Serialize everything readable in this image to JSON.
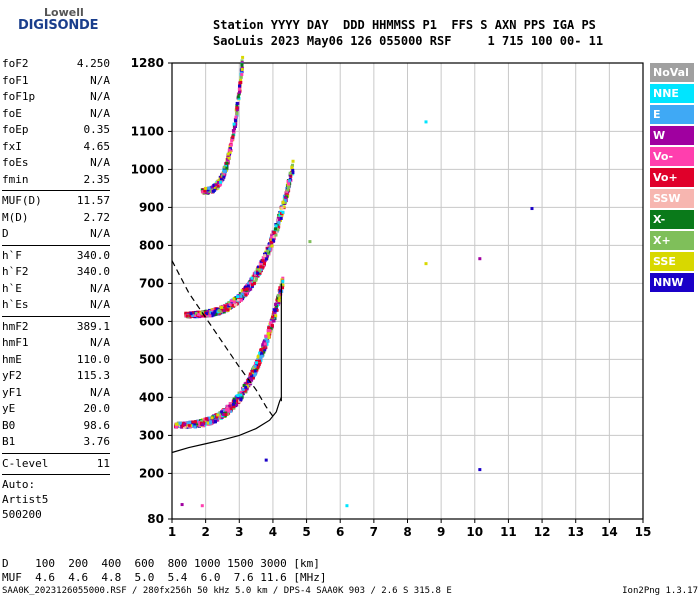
{
  "logo": {
    "top": "Lowell",
    "bottom": "DIGISONDE"
  },
  "header": {
    "line1": "Station YYYY DAY  DDD HHMMSS P1  FFS S AXN PPS IGA PS",
    "line2": "SaoLuis 2023 May06 126 055000 RSF     1 715 100 00- 11"
  },
  "params_groups": [
    [
      [
        "foF2",
        "4.250"
      ],
      [
        "foF1",
        "N/A"
      ],
      [
        "foF1p",
        "N/A"
      ],
      [
        "foE",
        "N/A"
      ],
      [
        "foEp",
        "0.35"
      ],
      [
        "fxI",
        "4.65"
      ],
      [
        "foEs",
        "N/A"
      ],
      [
        "fmin",
        "2.35"
      ]
    ],
    [
      [
        "MUF(D)",
        "11.57"
      ],
      [
        "M(D)",
        "2.72"
      ],
      [
        "D",
        "N/A"
      ]
    ],
    [
      [
        "h`F",
        "340.0"
      ],
      [
        "h`F2",
        "340.0"
      ],
      [
        "h`E",
        "N/A"
      ],
      [
        "h`Es",
        "N/A"
      ]
    ],
    [
      [
        "hmF2",
        "389.1"
      ],
      [
        "hmF1",
        "N/A"
      ],
      [
        "hmE",
        "110.0"
      ],
      [
        "yF2",
        "115.3"
      ],
      [
        "yF1",
        "N/A"
      ],
      [
        "yE",
        "20.0"
      ],
      [
        "B0",
        "98.6"
      ],
      [
        "B1",
        "3.76"
      ]
    ],
    [
      [
        "C-level",
        "11"
      ]
    ]
  ],
  "auto": [
    "Auto:",
    "Artist5",
    "500200"
  ],
  "legend": [
    {
      "label": "NoVal",
      "color": "#a0a0a0"
    },
    {
      "label": "NNE",
      "color": "#00e5ff"
    },
    {
      "label": "E",
      "color": "#3fa9f5"
    },
    {
      "label": "W",
      "color": "#a000a0"
    },
    {
      "label": "Vo-",
      "color": "#ff3fae"
    },
    {
      "label": "Vo+",
      "color": "#e0002a"
    },
    {
      "label": "SSW",
      "color": "#f7b6b0"
    },
    {
      "label": "X-",
      "color": "#0a7a1a"
    },
    {
      "label": "X+",
      "color": "#7fbf5a"
    },
    {
      "label": "SSE",
      "color": "#d8d800"
    },
    {
      "label": "NNW",
      "color": "#1a00c8"
    }
  ],
  "footer": {
    "d_line": "D    100  200  400  600  800 1000 1500 3000 [km]",
    "muf_line": "MUF  4.6  4.6  4.8  5.0  5.4  6.0  7.6 11.6 [MHz]",
    "file_info": "SAA0K_2023126055000.RSF / 280fx256h 50 kHz 5.0 km / DPS-4 SAA0K 903 / 2.6 S 315.8 E",
    "version": "Ion2Png 1.3.17"
  },
  "chart_data": {
    "type": "scatter",
    "title": "",
    "xlabel": "",
    "ylabel": "",
    "xlim": [
      1,
      15
    ],
    "ylim": [
      80,
      1280
    ],
    "xticks": [
      1,
      2,
      3,
      4,
      5,
      6,
      7,
      8,
      9,
      10,
      11,
      12,
      13,
      14,
      15
    ],
    "yticks": [
      80,
      200,
      300,
      400,
      500,
      600,
      700,
      800,
      900,
      1000,
      1100,
      1280
    ],
    "grid": true,
    "traces": [
      {
        "name": "first-hop",
        "f_start": 1.1,
        "f_end": 4.3,
        "h_base": 325,
        "h_top": 700,
        "h_asym": 4.5
      },
      {
        "name": "second-hop",
        "f_start": 1.4,
        "f_end": 4.6,
        "h_base": 615,
        "h_top": 1000,
        "h_asym": 4.7
      },
      {
        "name": "third-hop",
        "f_start": 1.9,
        "f_end": 3.1,
        "h_base": 940,
        "h_top": 1280,
        "h_asym": 3.2
      }
    ],
    "profile": [
      [
        1.0,
        255
      ],
      [
        1.5,
        268
      ],
      [
        2.0,
        278
      ],
      [
        2.5,
        288
      ],
      [
        3.0,
        300
      ],
      [
        3.5,
        318
      ],
      [
        3.9,
        340
      ],
      [
        4.1,
        362
      ],
      [
        4.2,
        390
      ],
      [
        4.25,
        400
      ]
    ],
    "muf_dashed": [
      [
        1.0,
        760
      ],
      [
        1.5,
        675
      ],
      [
        2.0,
        610
      ],
      [
        2.5,
        545
      ],
      [
        3.0,
        480
      ],
      [
        3.5,
        420
      ],
      [
        3.8,
        375
      ],
      [
        4.0,
        350
      ]
    ],
    "vertical_line": {
      "f": 4.25,
      "h_from": 390,
      "h_to": 700
    },
    "stray_points": [
      {
        "f": 8.55,
        "h": 1125,
        "c": "#00e5ff"
      },
      {
        "f": 11.7,
        "h": 897,
        "c": "#1a00c8"
      },
      {
        "f": 10.15,
        "h": 765,
        "c": "#a000a0"
      },
      {
        "f": 8.55,
        "h": 752,
        "c": "#d8d800"
      },
      {
        "f": 10.15,
        "h": 210,
        "c": "#1a00c8"
      },
      {
        "f": 6.2,
        "h": 115,
        "c": "#00e5ff"
      },
      {
        "f": 5.1,
        "h": 810,
        "c": "#7fbf5a"
      },
      {
        "f": 1.9,
        "h": 115,
        "c": "#ff3fae"
      },
      {
        "f": 1.3,
        "h": 118,
        "c": "#a000a0"
      },
      {
        "f": 3.8,
        "h": 235,
        "c": "#1a00c8"
      },
      {
        "f": 2.0,
        "h": 950,
        "c": "#d8d800"
      }
    ]
  }
}
